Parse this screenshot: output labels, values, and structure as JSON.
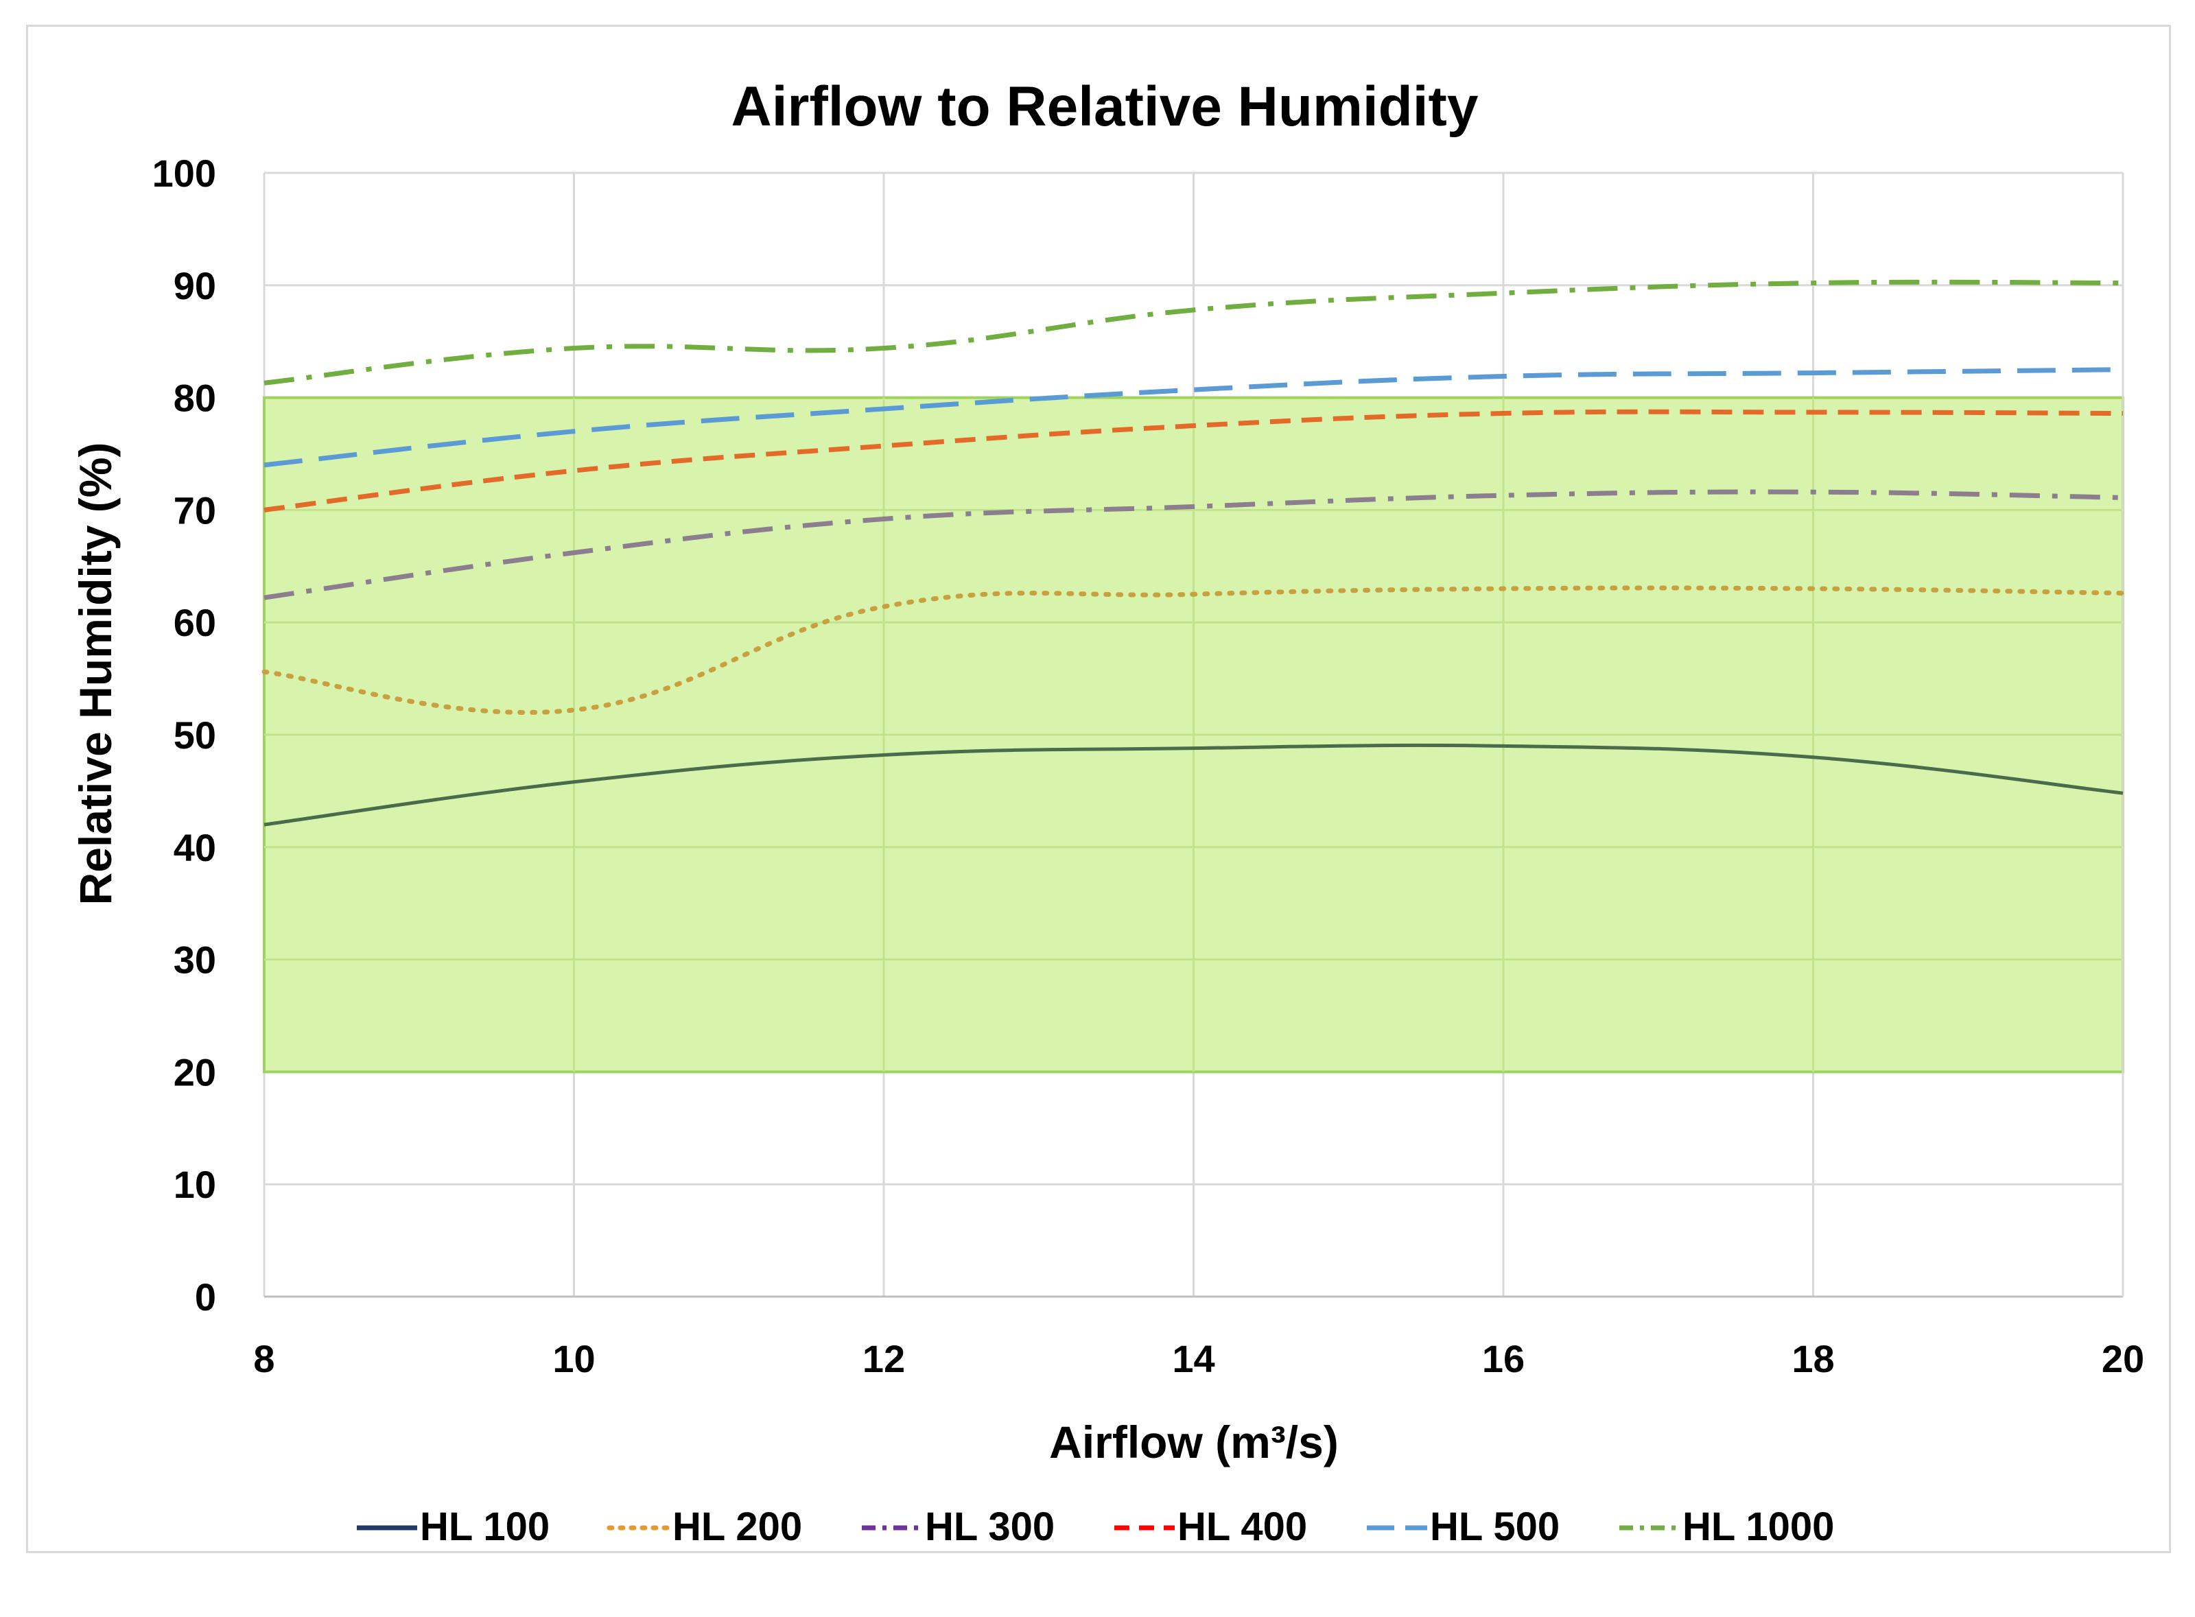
{
  "chart_data": {
    "type": "line",
    "title": "Airflow to Relative Humidity",
    "xlabel": "Airflow (m³/s)",
    "ylabel": "Relative Humidity  (%)",
    "xlim": [
      8,
      20
    ],
    "ylim": [
      0,
      100
    ],
    "x_ticks": [
      "8",
      "10",
      "12",
      "14",
      "16",
      "18",
      "20"
    ],
    "y_ticks": [
      "0",
      "10",
      "20",
      "30",
      "40",
      "50",
      "60",
      "70",
      "80",
      "90",
      "100"
    ],
    "grid": true,
    "legend_position": "bottom",
    "comfort_band": {
      "y_min": 20,
      "y_max": 80,
      "color": "#d6f2a8",
      "border": "#9ed35f"
    },
    "series": [
      {
        "name": "HL 100",
        "color": "#1f3864",
        "plot_color": "#4b6b4b",
        "dash": "solid",
        "x": [
          8,
          10,
          12,
          14,
          16,
          18,
          20
        ],
        "values": [
          42,
          45.8,
          48.2,
          48.8,
          49,
          48,
          44.8
        ]
      },
      {
        "name": "HL 200",
        "color": "#e59a2f",
        "plot_color": "#c9a040",
        "dash": "dotted",
        "x": [
          8,
          10,
          12,
          14,
          16,
          18,
          20
        ],
        "values": [
          55.6,
          52.2,
          61.4,
          62.5,
          63,
          63,
          62.6
        ]
      },
      {
        "name": "HL 300",
        "color": "#7030a0",
        "plot_color": "#8c7e8e",
        "dash": "dashdot",
        "x": [
          8,
          10,
          12,
          14,
          16,
          18,
          20
        ],
        "values": [
          62.2,
          66.2,
          69.2,
          70.3,
          71.3,
          71.6,
          71.1
        ]
      },
      {
        "name": "HL 400",
        "color": "#ff0000",
        "plot_color": "#e46a2a",
        "dash": "dashed",
        "x": [
          8,
          10,
          12,
          14,
          16,
          18,
          20
        ],
        "values": [
          70,
          73.5,
          75.7,
          77.5,
          78.6,
          78.7,
          78.6
        ]
      },
      {
        "name": "HL 500",
        "color": "#5b9bd5",
        "plot_color": "#5b9bd5",
        "dash": "longdash",
        "x": [
          8,
          10,
          12,
          14,
          16,
          18,
          20
        ],
        "values": [
          74,
          77,
          79,
          80.7,
          81.9,
          82.2,
          82.5
        ]
      },
      {
        "name": "HL 1000",
        "color": "#70ad47",
        "plot_color": "#6fae3f",
        "dash": "dashdot",
        "x": [
          8,
          10,
          12,
          14,
          16,
          18,
          20
        ],
        "values": [
          81.3,
          84.4,
          84.4,
          87.8,
          89.3,
          90.2,
          90.2
        ]
      }
    ]
  }
}
